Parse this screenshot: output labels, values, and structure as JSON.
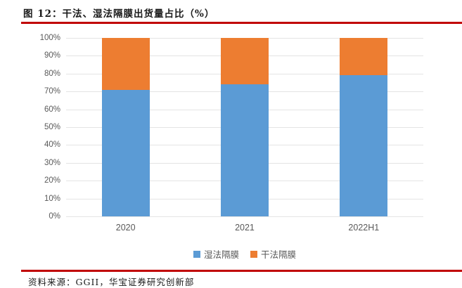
{
  "figure": {
    "title": "图 12：干法、湿法隔膜出货量占比（%）",
    "source": "资料来源：GGII，华宝证券研究创新部"
  },
  "colors": {
    "rule_red": "#c00000",
    "wet": "#5b9bd5",
    "dry": "#ed7d31",
    "axis_text": "#595959",
    "gridline": "#e4e4e4"
  },
  "chart_data": {
    "type": "bar",
    "stacked": true,
    "title": "干法、湿法隔膜出货量占比（%）",
    "categories": [
      "2020",
      "2021",
      "2022H1"
    ],
    "series": [
      {
        "name": "湿法隔膜",
        "color_key": "wet",
        "values": [
          71,
          74,
          79
        ]
      },
      {
        "name": "干法隔膜",
        "color_key": "dry",
        "values": [
          29,
          26,
          21
        ]
      }
    ],
    "xlabel": "",
    "ylabel": "",
    "ylim": [
      0,
      100
    ],
    "ytick_step": 10,
    "ytick_suffix": "%",
    "grid": true,
    "legend_position": "bottom"
  }
}
